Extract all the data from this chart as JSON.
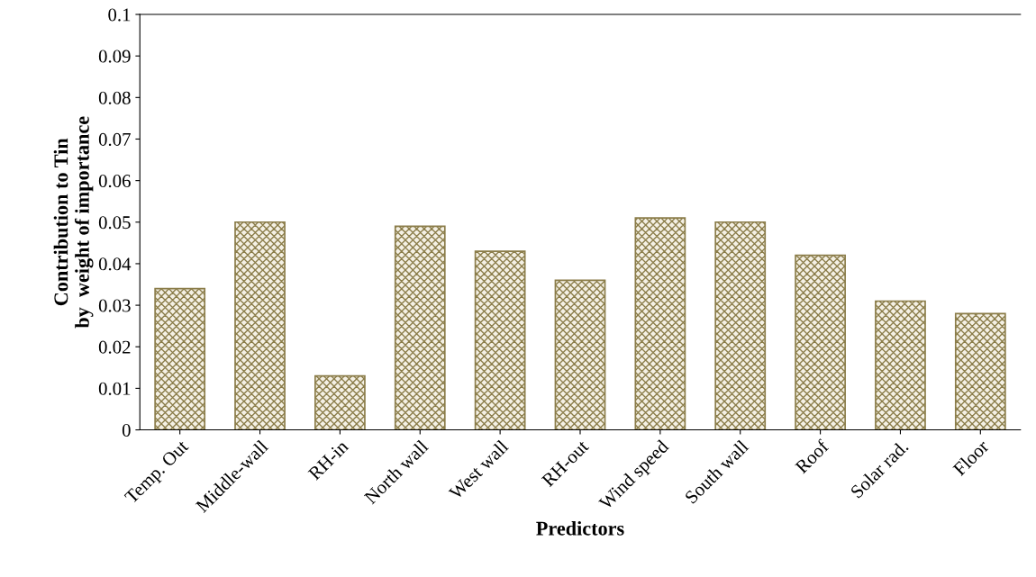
{
  "chart_data": {
    "type": "bar",
    "xlabel": "Predictors",
    "ylabel": "Contribution to Tin\nby  weight of importance",
    "categories": [
      "Temp. Out",
      "Middle-wall",
      "RH-in",
      "North wall",
      "West wall",
      "RH-out",
      "Wind speed",
      "South wall",
      "Roof",
      "Solar rad.",
      "Floor"
    ],
    "values": [
      0.034,
      0.05,
      0.013,
      0.049,
      0.043,
      0.036,
      0.051,
      0.05,
      0.042,
      0.031,
      0.028
    ],
    "color": "#8b7d4a",
    "ylim": [
      0,
      0.1
    ],
    "yticks": [
      {
        "value": 0,
        "label": "0"
      },
      0.01,
      0.02,
      0.03,
      0.04,
      0.05,
      0.06,
      0.07,
      0.08,
      0.09,
      0.1
    ],
    "grid": false,
    "legend": false
  }
}
